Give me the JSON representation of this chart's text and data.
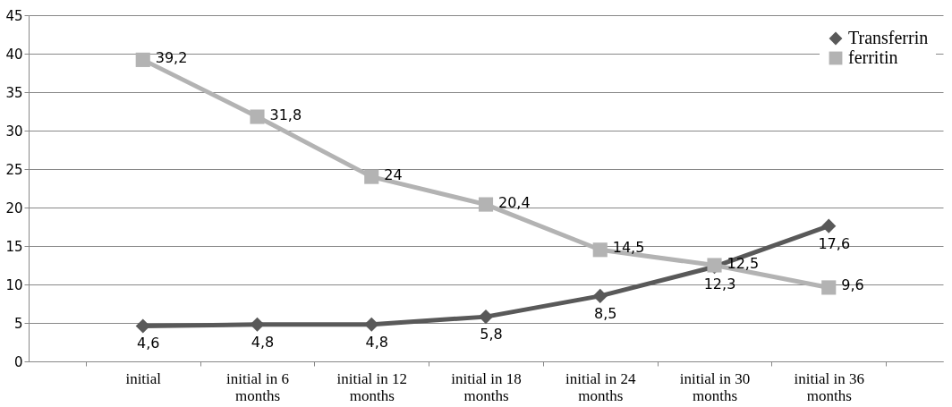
{
  "chart_data": {
    "type": "line",
    "categories": [
      "initial",
      "initial in 6 months",
      "initial in 12 months",
      "initial in 18 months",
      "initial in 24 months",
      "initial in 30 months",
      "initial in 36 months"
    ],
    "series": [
      {
        "name": "Transferrin",
        "color": "#595959",
        "marker": "diamond",
        "values": [
          4.6,
          4.8,
          4.8,
          5.8,
          8.5,
          12.3,
          17.6
        ],
        "value_labels": [
          "4,6",
          "4,8",
          "4,8",
          "5,8",
          "8,5",
          "12,3",
          "17,6"
        ]
      },
      {
        "name": "ferritin",
        "color": "#b3b3b3",
        "marker": "square",
        "values": [
          39.2,
          31.8,
          24,
          20.4,
          14.5,
          12.5,
          9.6
        ],
        "value_labels": [
          "39,2",
          "31,8",
          "24",
          "20,4",
          "14,5",
          "12,5",
          "9,6"
        ]
      }
    ],
    "ylim": [
      0,
      45
    ],
    "yticks": [
      0,
      5,
      10,
      15,
      20,
      25,
      30,
      35,
      40,
      45
    ],
    "grid": "y",
    "legend": "top right",
    "line_style": "solid"
  }
}
